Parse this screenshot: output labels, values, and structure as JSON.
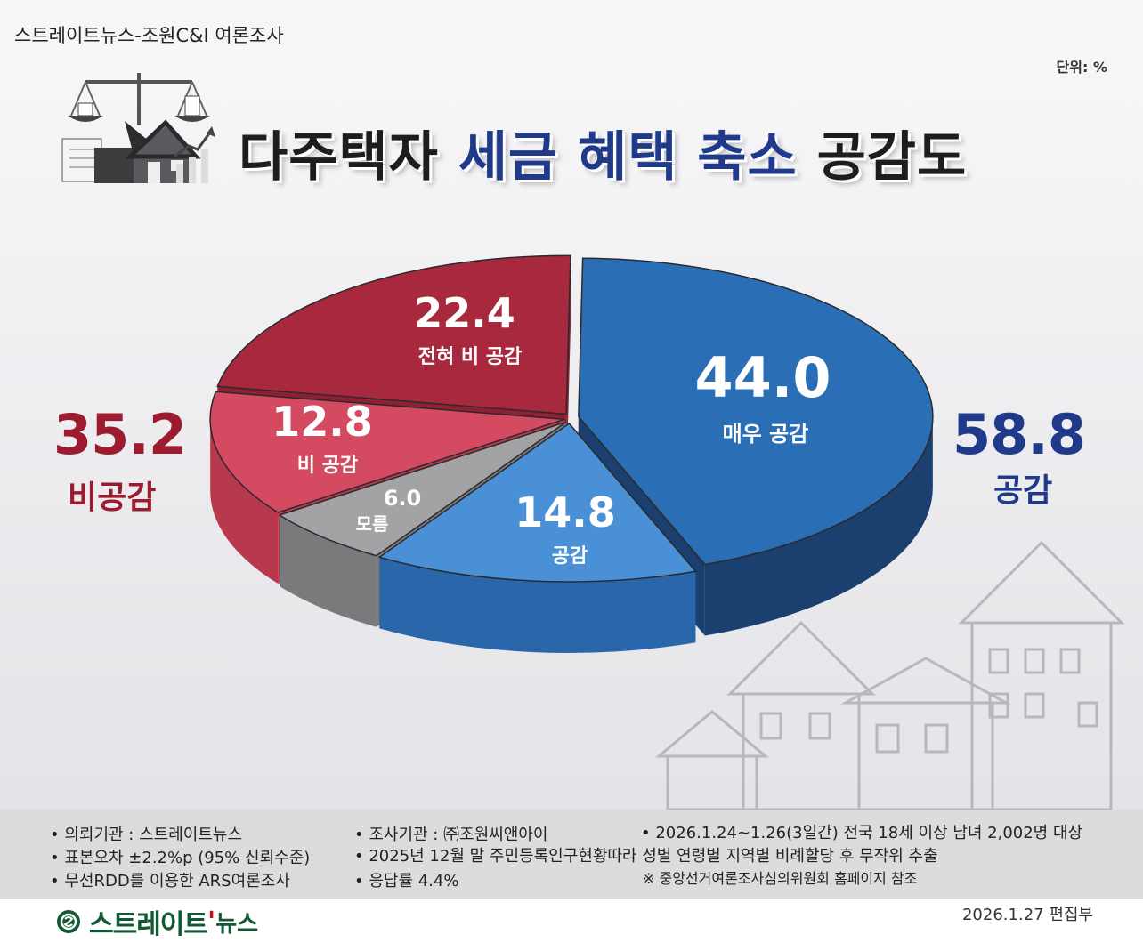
{
  "header": {
    "source_title": "스트레이트뉴스-조원C&I 여론조사",
    "unit": "단위: %"
  },
  "title": {
    "part1": "다주택자 ",
    "highlight": "세금 혜택 축소",
    "part2": " 공감도"
  },
  "chart_data": {
    "type": "pie",
    "title": "다주택자 세금 혜택 축소 공감도",
    "unit": "%",
    "slices": [
      {
        "label": "매우 공감",
        "value": 44.0,
        "display": "44.0",
        "color": "#2a6fb5",
        "side": "#1b3f6e"
      },
      {
        "label": "공감",
        "value": 14.8,
        "display": "14.8",
        "color": "#4a90d6",
        "side": "#2a66aa"
      },
      {
        "label": "모름",
        "value": 6.0,
        "display": "6.0",
        "color": "#a3a3a6",
        "side": "#7a7a7d"
      },
      {
        "label": "비 공감",
        "value": 12.8,
        "display": "12.8",
        "color": "#d44a60",
        "side": "#b8394e"
      },
      {
        "label": "전혀 비 공감",
        "value": 22.4,
        "display": "22.4",
        "color": "#a8283d",
        "side": "#8f1f32"
      }
    ],
    "totals": [
      {
        "label": "공감",
        "value": "58.8",
        "color": "#1f3a8a"
      },
      {
        "label": "비공감",
        "value": "35.2",
        "color": "#9c1b2e"
      }
    ]
  },
  "footer": {
    "notes": [
      "• 의뢰기관 : 스트레이트뉴스",
      "• 표본오차 ±2.2%p (95% 신뢰수준)",
      "• 무선RDD를 이용한 ARS여론조사",
      "• 조사기관 : ㈜조원씨앤아이",
      "• 2025년 12월 말 주민등록인구현황따라 성별 연령별 지역별 비례할당 후 무작위 추출",
      "• 응답률 4.4%",
      "• 2026.1.24~1.26(3일간) 전국 18세 이상 남녀 2,002명 대상",
      "※ 중앙선거여론조사심의위원회 홈페이지 참조"
    ],
    "logo_main": "스트레이트",
    "logo_tick": "'",
    "logo_sub": "뉴스",
    "date": "2026.1.27  편집부"
  }
}
